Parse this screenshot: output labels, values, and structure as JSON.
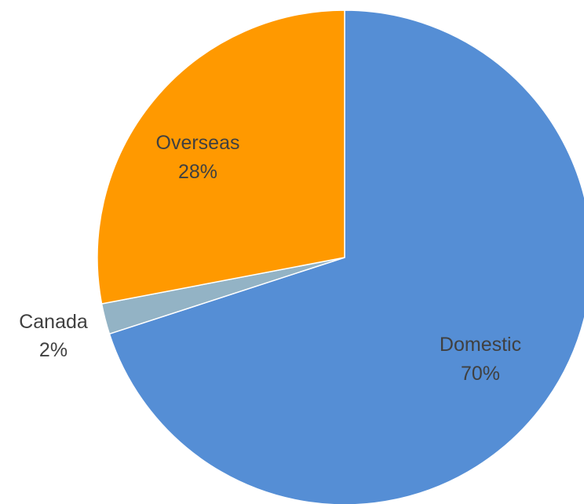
{
  "chart_data": {
    "type": "pie",
    "title": "",
    "start_angle_deg": 0,
    "direction": "clockwise",
    "legend": "none",
    "slices": [
      {
        "name": "Domestic",
        "value": 70,
        "label_percent": "70%",
        "color": "#558ed5"
      },
      {
        "name": "Canada",
        "value": 2,
        "label_percent": "2%",
        "color": "#93b3c5"
      },
      {
        "name": "Overseas",
        "value": 28,
        "label_percent": "28%",
        "color": "#ff9900"
      }
    ]
  }
}
